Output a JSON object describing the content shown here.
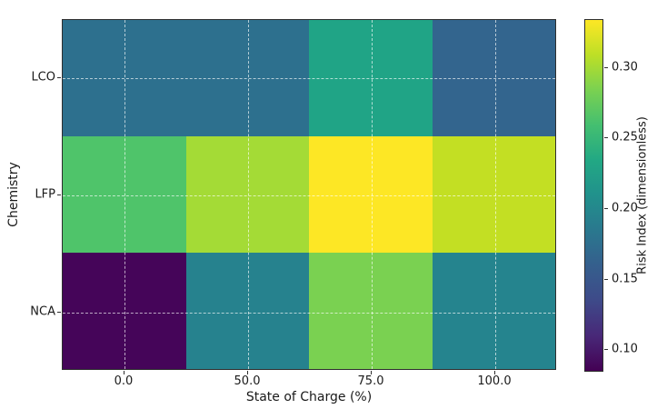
{
  "chart_data": {
    "type": "heatmap",
    "x": [
      "0.0",
      "50.0",
      "75.0",
      "100.0"
    ],
    "xlabel": "State of Charge (%)",
    "y": [
      "LCO",
      "LFP",
      "NCA"
    ],
    "ylabel": "Chemistry",
    "values": [
      [
        0.17,
        0.17,
        0.23,
        0.16
      ],
      [
        0.26,
        0.3,
        0.33,
        0.31
      ],
      [
        0.08,
        0.19,
        0.28,
        0.2
      ]
    ],
    "cell_colors": [
      [
        "#2d708e",
        "#2d708e",
        "#20a486",
        "#33658e"
      ],
      [
        "#4fc46a",
        "#a4db36",
        "#fde725",
        "#c3df23"
      ],
      [
        "#450559",
        "#26828e",
        "#7ad151",
        "#25848e"
      ]
    ],
    "grid": true,
    "legend_position": "right-colorbar",
    "colorbar": {
      "label": "Risk Index (dimensionless)",
      "ticks": [
        0.1,
        0.15,
        0.2,
        0.25,
        0.3
      ],
      "tick_labels": [
        "0.10",
        "0.15",
        "0.20",
        "0.25",
        "0.30"
      ],
      "range": [
        0.084,
        0.334
      ],
      "colormap": "viridis",
      "gradient_stops": [
        {
          "pos": 0.0,
          "color": "#440154"
        },
        {
          "pos": 0.1,
          "color": "#482878"
        },
        {
          "pos": 0.2,
          "color": "#3e4a89"
        },
        {
          "pos": 0.3,
          "color": "#355f8d"
        },
        {
          "pos": 0.4,
          "color": "#2a788e"
        },
        {
          "pos": 0.5,
          "color": "#21918c"
        },
        {
          "pos": 0.6,
          "color": "#22a884"
        },
        {
          "pos": 0.7,
          "color": "#44bf70"
        },
        {
          "pos": 0.8,
          "color": "#7ad151"
        },
        {
          "pos": 0.9,
          "color": "#bddf26"
        },
        {
          "pos": 1.0,
          "color": "#fde725"
        }
      ]
    }
  }
}
